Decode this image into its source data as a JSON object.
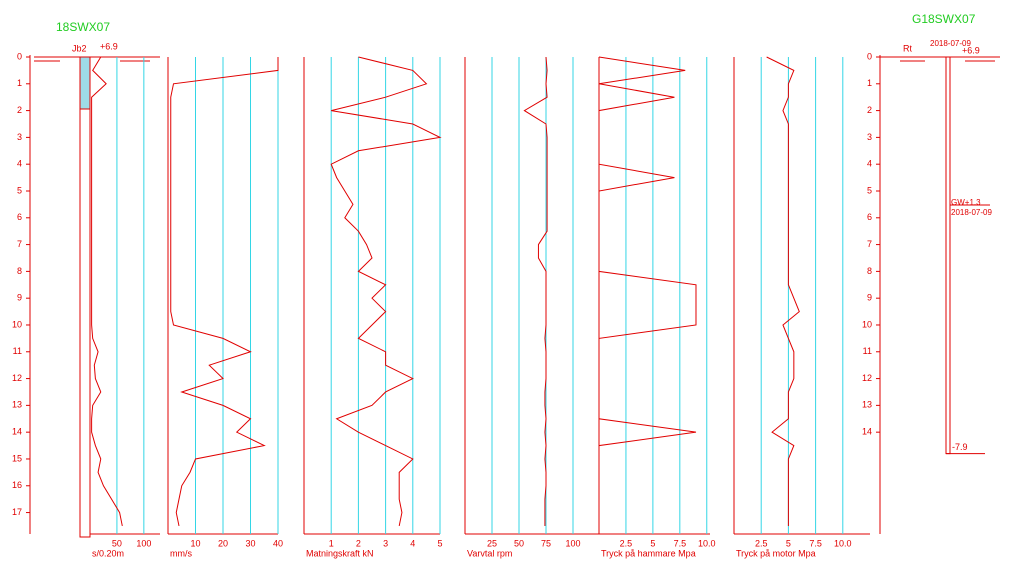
{
  "title_left": "18SWX07",
  "title_right": "G18SWX07",
  "left_labels": {
    "method": "Jb2",
    "level": "+6.9"
  },
  "right_labels": {
    "method": "Rt",
    "date": "2018-07-09",
    "level": "+6.9",
    "gw": "GW+1.3",
    "gw_date": "2018-07-09",
    "bottom": "-7.9"
  },
  "depth_axis": {
    "ylim": [
      0,
      17.8
    ],
    "yticks": [
      0,
      1,
      2,
      3,
      4,
      5,
      6,
      7,
      8,
      9,
      10,
      11,
      12,
      13,
      14,
      15,
      16,
      17
    ]
  },
  "right_axis": {
    "ylim": [
      0,
      17.8
    ],
    "yticks": [
      0,
      1,
      2,
      3,
      4,
      5,
      6,
      7,
      8,
      9,
      10,
      11,
      12,
      13,
      14
    ],
    "bottom_depth": 14.8
  },
  "depths": [
    0,
    0.5,
    1,
    1.5,
    2,
    2.5,
    3,
    3.5,
    4,
    4.5,
    5,
    5.5,
    6,
    6.5,
    7,
    7.5,
    8,
    8.5,
    9,
    9.5,
    10,
    10.5,
    11,
    11.5,
    12,
    12.5,
    13,
    13.5,
    14,
    14.5,
    15,
    15.5,
    16,
    16.5,
    17,
    17.5
  ],
  "chart_data": [
    {
      "type": "line",
      "xlabel": "s/0.20m",
      "xlim": [
        0,
        130
      ],
      "xticks": [
        50,
        100
      ],
      "color": "#e00000",
      "grid": true,
      "values": [
        20,
        5,
        30,
        3,
        3,
        3,
        3,
        3,
        3,
        3,
        3,
        3,
        3,
        3,
        3,
        3,
        3,
        3,
        3,
        3,
        3,
        5,
        15,
        8,
        10,
        20,
        5,
        3,
        3,
        10,
        20,
        15,
        25,
        40,
        55,
        60
      ]
    },
    {
      "type": "line",
      "xlabel": "mm/s",
      "xlim": [
        0,
        40
      ],
      "xticks": [
        10,
        20,
        30,
        40
      ],
      "color": "#e00000",
      "grid": true,
      "values": [
        40,
        40,
        2,
        1,
        1,
        1,
        1,
        1,
        1,
        1,
        1,
        1,
        1,
        1,
        1,
        1,
        1,
        1,
        1,
        1,
        2,
        20,
        30,
        15,
        20,
        5,
        20,
        30,
        25,
        35,
        10,
        8,
        5,
        4,
        3,
        4
      ]
    },
    {
      "type": "line",
      "xlabel": "Matningskraft kN",
      "xlim": [
        0,
        5
      ],
      "xticks": [
        1,
        2,
        3,
        4,
        5
      ],
      "color": "#e00000",
      "grid": true,
      "values": [
        2,
        4,
        4.5,
        3,
        1,
        4,
        5,
        2,
        1,
        1.2,
        1.5,
        1.8,
        1.5,
        2,
        2.3,
        2.5,
        2,
        3,
        2.5,
        3,
        2.5,
        2,
        3,
        3,
        4,
        3,
        2.5,
        1.2,
        2,
        3,
        4,
        3.5,
        3.5,
        3.5,
        3.6,
        3.5
      ]
    },
    {
      "type": "line",
      "xlabel": "Varvtal rpm",
      "xlim": [
        0,
        125
      ],
      "xticks": [
        25,
        50,
        75,
        100
      ],
      "color": "#e00000",
      "grid": true,
      "values": [
        75,
        76,
        75,
        76,
        55,
        75,
        76,
        76,
        76,
        76,
        76,
        76,
        76,
        76,
        68,
        68,
        75,
        75,
        75,
        75,
        75,
        74,
        75,
        75,
        75,
        74,
        74,
        75,
        74,
        75,
        74,
        75,
        75,
        74,
        74,
        74
      ]
    },
    {
      "type": "line",
      "xlabel": "Tryck på hammare Mpa",
      "xlim": [
        0,
        10.3
      ],
      "xticks": [
        2.5,
        5,
        7.5,
        {
          "value": 10,
          "label": "10.0"
        }
      ],
      "color": "#e00000",
      "grid": true,
      "values": [
        0,
        8,
        0,
        7,
        0,
        0,
        0,
        0,
        0,
        7,
        0,
        0,
        0,
        0,
        0,
        0,
        0,
        9,
        9,
        9,
        9,
        0,
        0,
        0,
        0,
        0,
        0,
        0,
        9,
        0,
        0,
        0,
        0,
        0,
        0,
        0
      ]
    },
    {
      "type": "line",
      "xlabel": "Tryck på motor Mpa",
      "xlim": [
        0,
        12.5
      ],
      "xticks": [
        2.5,
        5,
        7.5,
        {
          "value": 10,
          "label": "10.0"
        }
      ],
      "color": "#e00000",
      "grid": true,
      "values": [
        3,
        5.5,
        5,
        5,
        4.5,
        5,
        5,
        5,
        5,
        5,
        5,
        5,
        5,
        5,
        5,
        5,
        5,
        5,
        5.5,
        6,
        4.5,
        5,
        5.5,
        5.5,
        5.5,
        5,
        5,
        5,
        3.5,
        5.5,
        5,
        5,
        5,
        5,
        5,
        5
      ]
    }
  ]
}
